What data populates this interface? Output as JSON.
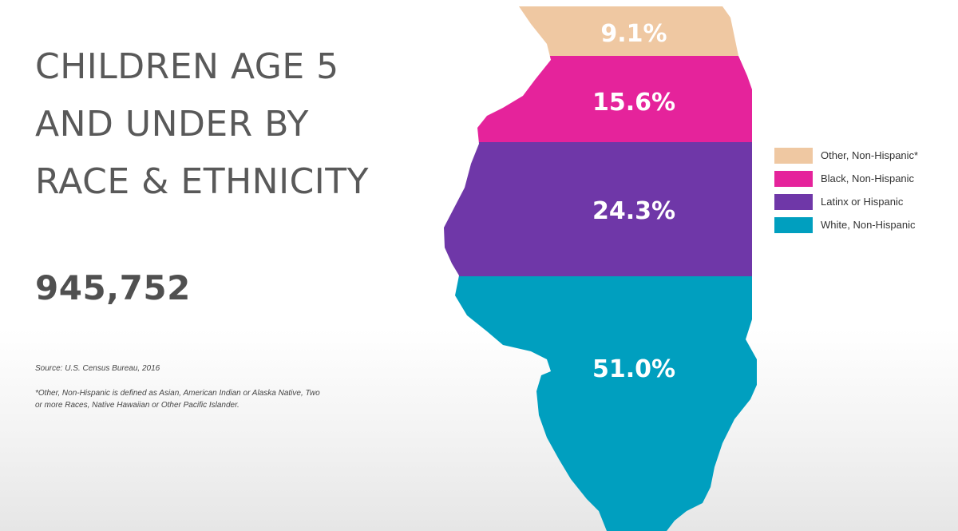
{
  "title": {
    "lines": [
      "CHILDREN AGE 5",
      "AND UNDER BY",
      "RACE & ETHNICITY"
    ]
  },
  "total": "945,752",
  "source": "Source: U.S. Census Bureau, 2016",
  "footnote": "*Other, Non-Hispanic is defined as Asian, American Indian or Alaska Native, Two or more Races, Native Hawaiian or Other Pacific Islander.",
  "chart_data": {
    "type": "map-stacked",
    "title": "CHILDREN AGE 5 AND UNDER BY RACE & ETHNICITY",
    "total": 945752,
    "unit": "%",
    "categories": [
      "Other, Non-Hispanic*",
      "Black, Non-Hispanic",
      "Latinx or Hispanic",
      "White, Non-Hispanic"
    ],
    "values": [
      9.1,
      15.6,
      24.3,
      51.0
    ],
    "labels": [
      "9.1%",
      "15.6%",
      "24.3%",
      "51.0%"
    ],
    "colors": [
      "#EFC8A2",
      "#E5239B",
      "#6F37A8",
      "#009FBF"
    ],
    "legend_position": "right"
  }
}
